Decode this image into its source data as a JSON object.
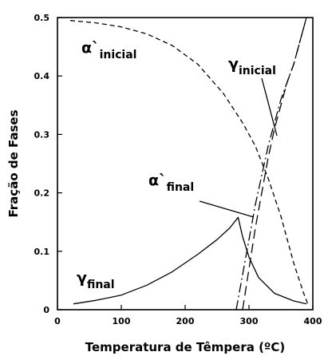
{
  "chart_data": {
    "type": "line",
    "xlabel": "Temperatura de Têmpera (ºC)",
    "ylabel": "Fração de Fases",
    "xlim": [
      0,
      400
    ],
    "ylim": [
      0,
      0.5
    ],
    "x_ticks": [
      "0",
      "100",
      "200",
      "300",
      "400"
    ],
    "y_ticks": [
      "0",
      "0.1",
      "0.2",
      "0.3",
      "0.4",
      "0.5"
    ],
    "grid": false,
    "series": [
      {
        "style": "dashed",
        "x": [
          20,
          60,
          100,
          140,
          180,
          220,
          260,
          290,
          310,
          330,
          350,
          370,
          385,
          392
        ],
        "y": [
          0.495,
          0.491,
          0.484,
          0.472,
          0.452,
          0.42,
          0.37,
          0.32,
          0.28,
          0.225,
          0.16,
          0.08,
          0.03,
          0.01
        ]
      },
      {
        "style": "solid",
        "x": [
          25,
          60,
          100,
          140,
          180,
          220,
          250,
          270,
          283,
          290,
          300,
          315,
          340,
          370,
          390
        ],
        "y": [
          0.01,
          0.016,
          0.025,
          0.042,
          0.065,
          0.095,
          0.12,
          0.14,
          0.158,
          0.125,
          0.09,
          0.055,
          0.028,
          0.015,
          0.01
        ]
      },
      {
        "style": "long-dash",
        "x": [
          290,
          300,
          310,
          320,
          330,
          340,
          350,
          360,
          370,
          380,
          390
        ],
        "y": [
          0.0,
          0.07,
          0.14,
          0.2,
          0.26,
          0.31,
          0.35,
          0.39,
          0.42,
          0.46,
          0.5
        ]
      },
      {
        "style": "dash-dot",
        "x": [
          280,
          290,
          300,
          310,
          320,
          330,
          340,
          350,
          360,
          370,
          380,
          390
        ],
        "y": [
          0.0,
          0.06,
          0.12,
          0.18,
          0.23,
          0.28,
          0.32,
          0.36,
          0.39,
          0.42,
          0.46,
          0.5
        ]
      }
    ],
    "annotations": [
      {
        "symbol": "α`",
        "sub": "inicial"
      },
      {
        "symbol": "γ",
        "sub": "inicial"
      },
      {
        "symbol": "α`",
        "sub": "final"
      },
      {
        "symbol": "γ",
        "sub": "final"
      }
    ]
  }
}
